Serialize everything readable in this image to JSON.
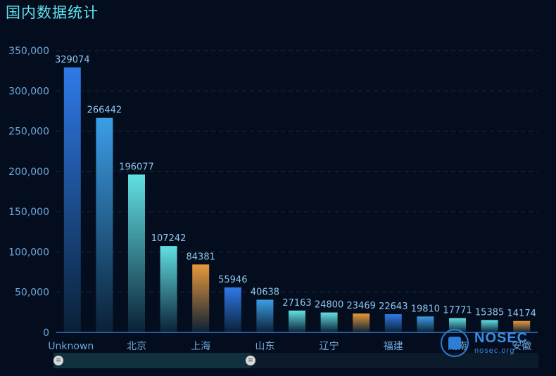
{
  "title": "国内数据统计",
  "colors": {
    "background": "#040d1d",
    "title": "#5fe6f2",
    "axis_label": "#6fa8dc",
    "value_label": "#8fc6f0",
    "palette": [
      {
        "top": "#2f7ae8",
        "bottom": "#0a2036"
      },
      {
        "top": "#3c9ee6",
        "bottom": "#0a2036"
      },
      {
        "top": "#62e0e2",
        "bottom": "#0a2036"
      },
      {
        "top": "#e8983a",
        "bottom": "#0a2036"
      }
    ]
  },
  "chart_data": {
    "type": "bar",
    "categories": [
      "Unknown",
      "北京",
      "上海",
      "山东",
      "辽宁",
      "福建",
      "湖南",
      "",
      "",
      "",
      "",
      "",
      "",
      "",
      ""
    ],
    "x_tick_labels": [
      "Unknown",
      "北京",
      "上海",
      "山东",
      "辽宁",
      "福建",
      "湖南",
      "安徽"
    ],
    "values": [
      329074,
      266442,
      196077,
      107242,
      84381,
      55946,
      40638,
      27163,
      24800,
      23469,
      22643,
      19810,
      17771,
      15385,
      14174
    ],
    "color_index": [
      0,
      1,
      2,
      2,
      3,
      0,
      1,
      2,
      2,
      3,
      0,
      1,
      2,
      2,
      3
    ],
    "ylim": [
      0,
      350000
    ],
    "yticks": [
      "0",
      "50,000",
      "100,000",
      "150,000",
      "200,000",
      "250,000",
      "300,000",
      "350,000"
    ],
    "grid": true,
    "legend": "none"
  },
  "zoom": {
    "handle_glyph": "≡",
    "start": 0,
    "end": 0.4
  },
  "watermark": {
    "brand": "NOSEC",
    "url": "nosec.org"
  }
}
